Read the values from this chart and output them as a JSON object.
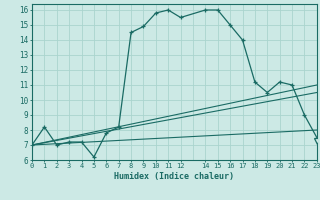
{
  "bg_color": "#cce9e5",
  "grid_color": "#aad4ce",
  "line_color": "#1a6b64",
  "xlim": [
    0,
    23
  ],
  "ylim": [
    6,
    16.4
  ],
  "xlabel": "Humidex (Indice chaleur)",
  "xticks": [
    0,
    1,
    2,
    3,
    4,
    5,
    6,
    7,
    8,
    9,
    10,
    11,
    12,
    14,
    15,
    16,
    17,
    18,
    19,
    20,
    21,
    22,
    23
  ],
  "xtick_labels": [
    "0",
    "1",
    "2",
    "3",
    "4",
    "5",
    "6",
    "7",
    "8",
    "9",
    "10",
    "11",
    "12",
    "14",
    "15",
    "16",
    "17",
    "18",
    "19",
    "20",
    "21",
    "22",
    "23"
  ],
  "yticks": [
    6,
    7,
    8,
    9,
    10,
    11,
    12,
    13,
    14,
    15,
    16
  ],
  "curve_x": [
    0,
    1,
    2,
    3,
    4,
    5,
    6,
    7,
    8,
    9,
    10,
    11,
    12,
    14,
    15,
    16,
    17,
    18,
    19,
    20,
    21,
    22,
    23
  ],
  "curve_y": [
    7.0,
    8.2,
    7.0,
    7.2,
    7.2,
    6.2,
    7.8,
    8.2,
    14.5,
    14.9,
    15.8,
    16.0,
    15.5,
    16.0,
    16.0,
    15.0,
    14.0,
    11.2,
    10.5,
    11.2,
    11.0,
    9.0,
    7.5
  ],
  "line_straight": [
    {
      "x": [
        0,
        23
      ],
      "y": [
        7.0,
        8.0
      ]
    },
    {
      "x": [
        0,
        23
      ],
      "y": [
        7.0,
        10.5
      ]
    },
    {
      "x": [
        0,
        23
      ],
      "y": [
        7.0,
        11.0
      ]
    }
  ],
  "triangle_x": 23,
  "triangle_y": 7.3
}
